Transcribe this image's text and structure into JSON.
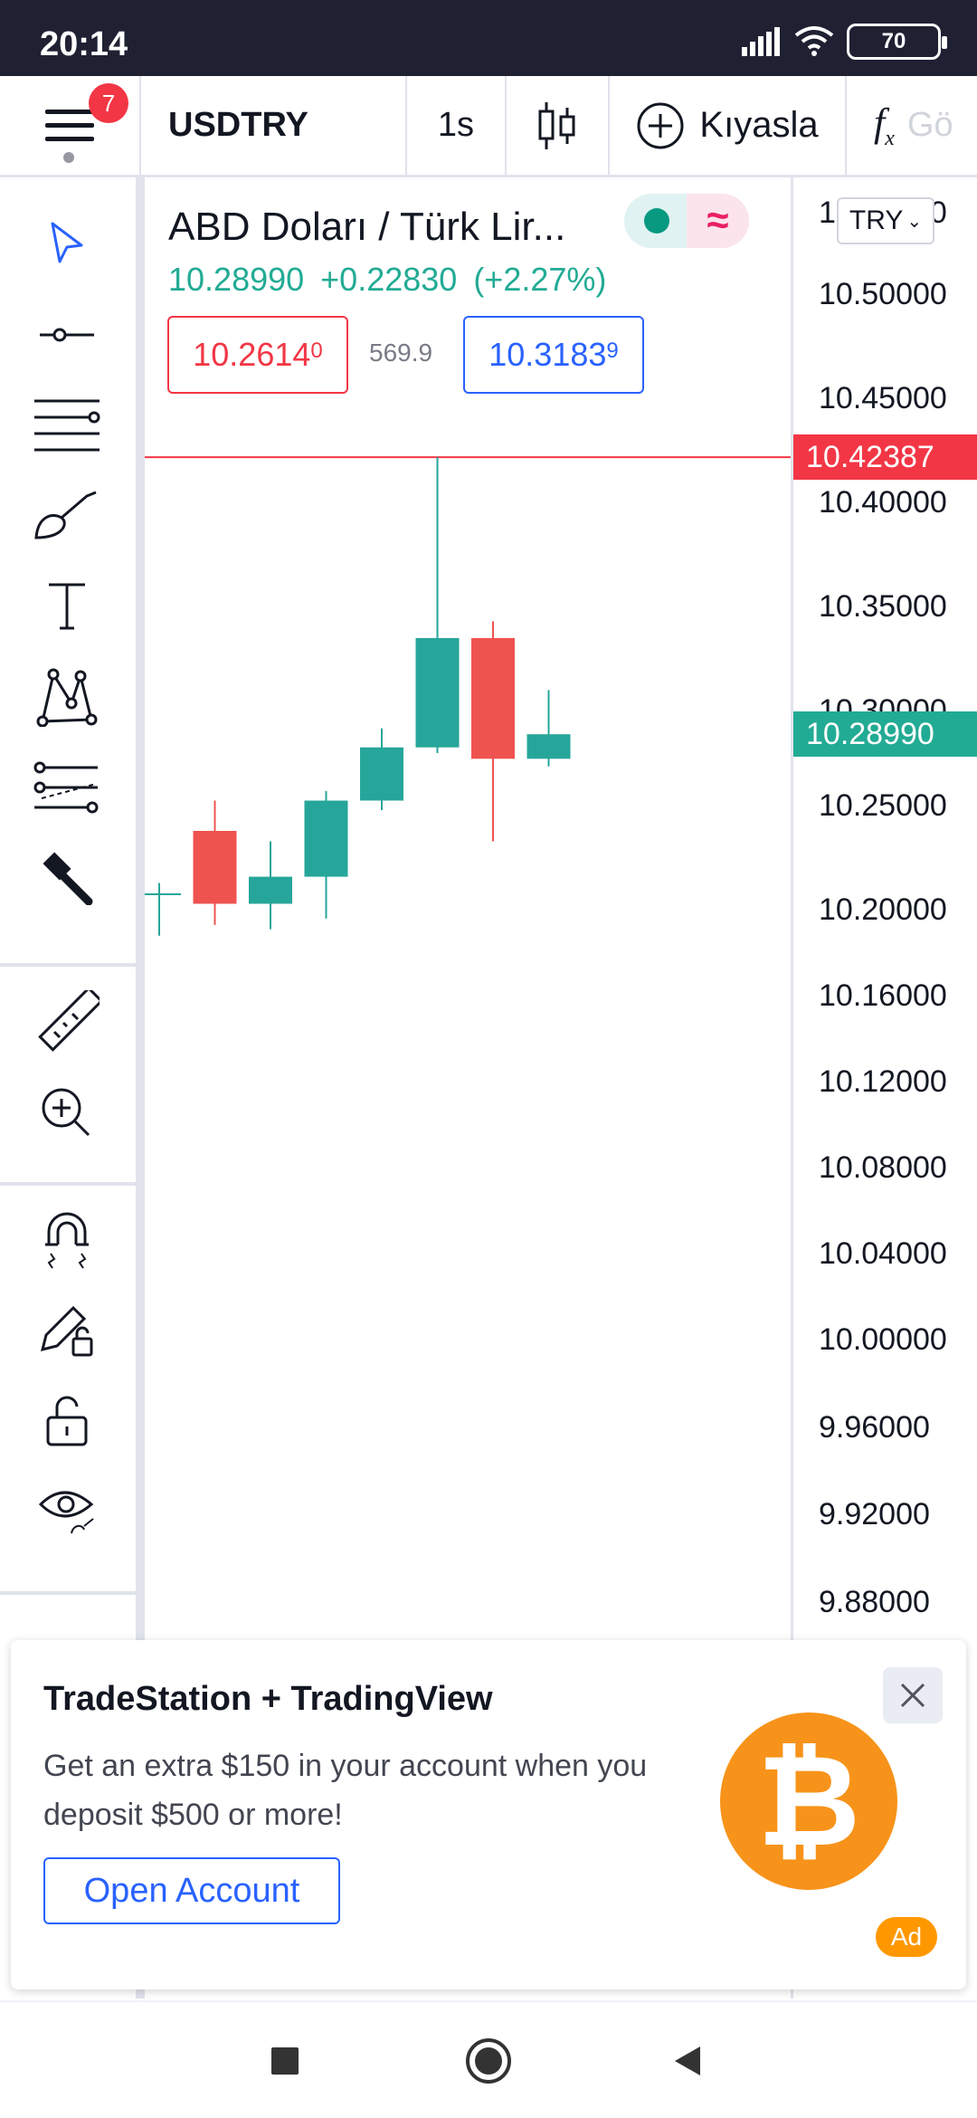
{
  "status_bar": {
    "time": "20:14",
    "battery": "70",
    "icons": [
      "signal-icon",
      "wifi-icon",
      "battery-icon"
    ]
  },
  "toolbar": {
    "notification_count": "7",
    "symbol": "USDTRY",
    "interval": "1s",
    "compare_label": "Kıyasla",
    "indicators_label": "Gö"
  },
  "sidebar": {
    "tools": [
      "cursor-icon",
      "trend-line-icon",
      "fib-retracement-icon",
      "brush-icon",
      "text-icon",
      "pattern-icon",
      "prediction-icon",
      "hammer-icon",
      "ruler-icon",
      "zoom-in-icon",
      "magnet-icon",
      "lock-drawings-icon",
      "lock-icon",
      "eye-icon"
    ]
  },
  "chart": {
    "title": "ABD Doları / Türk Lir...",
    "last": "10.28990",
    "change": "+0.22830",
    "change_pct": "(+2.27%)",
    "bid_main": "10.2614",
    "bid_frac": "0",
    "spread": "569.9",
    "ask_main": "10.3183",
    "ask_frac": "9"
  },
  "price_scale": {
    "currency": "TRY",
    "ticks": [
      "10.55000",
      "10.50000",
      "10.45000",
      "10.40000",
      "10.35000",
      "10.30000",
      "10.25000",
      "10.20000",
      "10.16000",
      "10.12000",
      "10.08000",
      "10.04000",
      "10.00000",
      "9.96000",
      "9.92000",
      "9.88000"
    ],
    "high_label": "10.42387",
    "last_label": "10.28990",
    "colors": {
      "high": "#f23645",
      "last": "#22ab94"
    }
  },
  "chart_data": {
    "type": "candlestick",
    "series": [
      {
        "open": 10.21,
        "high": 10.215,
        "low": 10.19,
        "close": 10.21
      },
      {
        "open": 10.24,
        "high": 10.255,
        "low": 10.195,
        "close": 10.205
      },
      {
        "open": 10.205,
        "high": 10.235,
        "low": 10.193,
        "close": 10.218
      },
      {
        "open": 10.218,
        "high": 10.26,
        "low": 10.198,
        "close": 10.255
      },
      {
        "open": 10.255,
        "high": 10.293,
        "low": 10.25,
        "close": 10.283
      },
      {
        "open": 10.283,
        "high": 10.42387,
        "low": 10.28,
        "close": 10.337
      },
      {
        "open": 10.337,
        "high": 10.345,
        "low": 10.235,
        "close": 10.277
      },
      {
        "open": 10.277,
        "high": 10.312,
        "low": 10.273,
        "close": 10.2899
      }
    ],
    "colors": {
      "up": "#26a69a",
      "down": "#ef5350"
    }
  },
  "ad": {
    "title": "TradeStation + TradingView",
    "body": "Get an extra $150 in your account when you deposit $500 or more!",
    "button": "Open Account",
    "tag": "Ad"
  },
  "navbar": {
    "buttons": [
      "recents-icon",
      "home-icon",
      "back-icon"
    ]
  }
}
